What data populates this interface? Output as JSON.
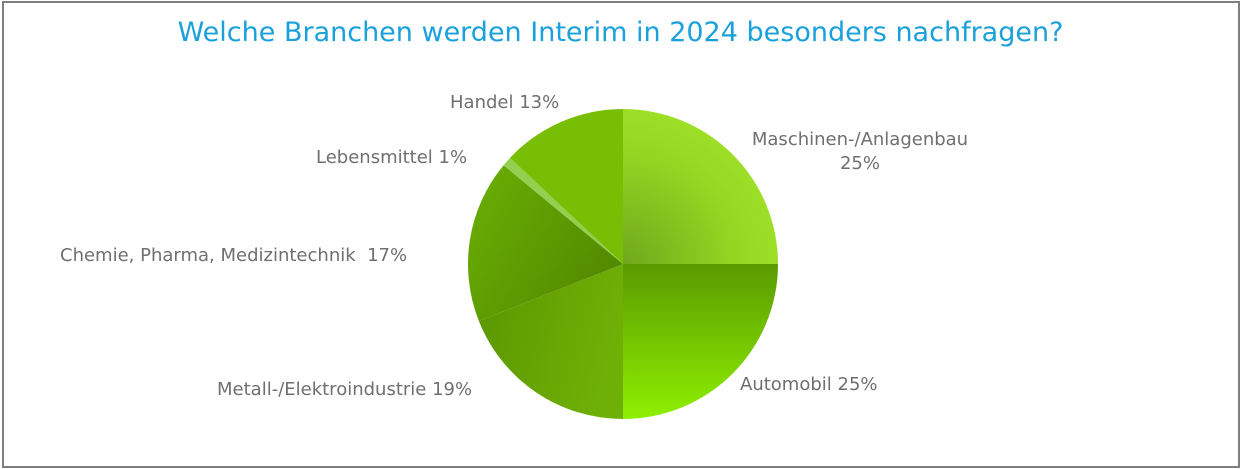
{
  "chart_data": {
    "type": "pie",
    "title": "Welche Branchen werden Interim in 2024 besonders nachfragen?",
    "start_angle": "12 o'clock, clockwise",
    "slices": [
      {
        "label": "Maschinen-/Anlagenbau",
        "value": 25,
        "display": "Maschinen-/Anlagenbau 25%",
        "color": "#8ed41c"
      },
      {
        "label": "Automobil",
        "value": 25,
        "display": "Automobil 25%",
        "color": "#7bc80a"
      },
      {
        "label": "Metall-/Elektroindustrie",
        "value": 19,
        "display": "Metall-/Elektroindustrie 19%",
        "color": "#62a402"
      },
      {
        "label": "Chemie, Pharma, Medizintechnik",
        "value": 17,
        "display": "Chemie, Pharma, Medizintechnik  17%",
        "color": "#5e9c02"
      },
      {
        "label": "Lebensmittel",
        "value": 1,
        "display": "Lebensmittel 1%",
        "color": "#93d050"
      },
      {
        "label": "Handel",
        "value": 13,
        "display": "Handel 13%",
        "color": "#78be04"
      }
    ]
  }
}
